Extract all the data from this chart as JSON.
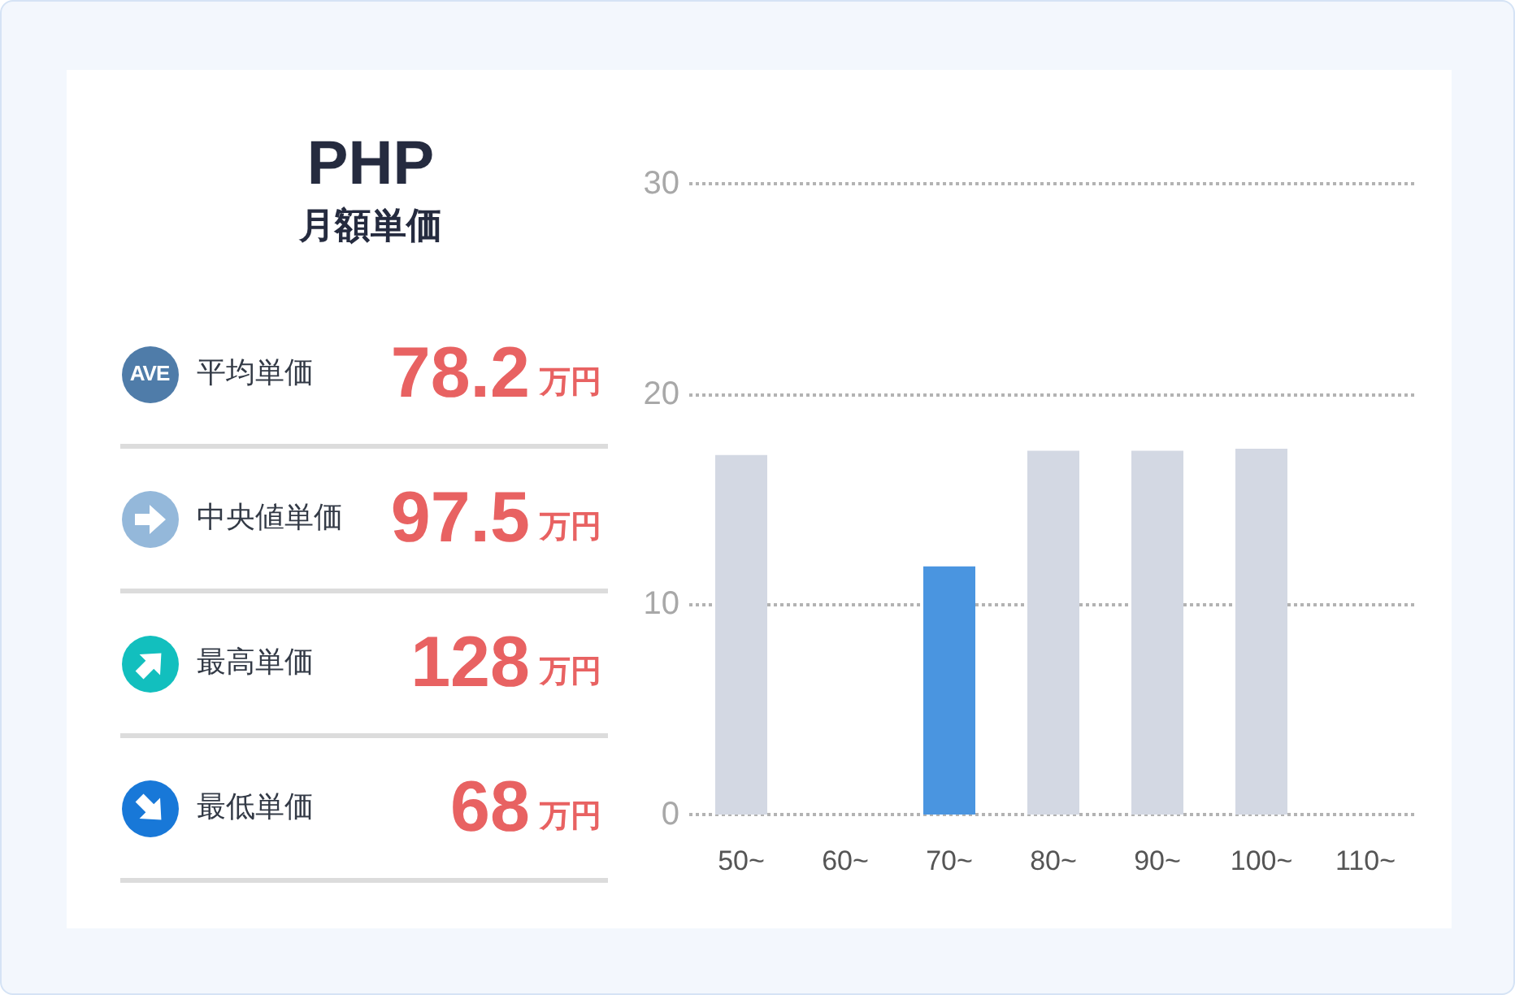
{
  "chart_data": [
    {
      "type": "other",
      "title": "PHP",
      "subtitle": "月額単価",
      "annotations": [
        "AVE",
        "平均単価",
        "78.2",
        "万円",
        "中央値単価",
        "97.5",
        "万円",
        "最高単価",
        "128",
        "万円",
        "最低単価",
        "68",
        "万円"
      ]
    },
    {
      "type": "bar",
      "categories": [
        "50~",
        "60~",
        "70~",
        "80~",
        "90~",
        "100~",
        "110~"
      ],
      "values": [
        17.1,
        0,
        11.8,
        17.3,
        17.3,
        17.4,
        0
      ],
      "colors": [
        "#d3d8e3",
        "#d3d8e3",
        "#4a95e0",
        "#d3d8e3",
        "#d3d8e3",
        "#d3d8e3",
        "#d3d8e3"
      ],
      "ylim": [
        0,
        30
      ],
      "yticks": [
        0,
        10,
        20,
        30
      ],
      "grid": "y"
    }
  ]
}
